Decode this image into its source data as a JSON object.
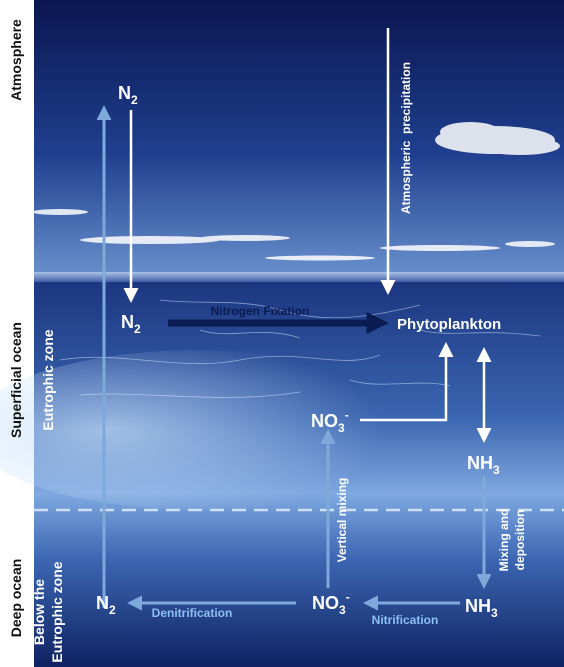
{
  "zones": {
    "atmosphere": "Atmosphere",
    "superficial_ocean": "Superficial ocean",
    "eutrophic_zone": "Eutrophic zone",
    "deep_ocean": "Deep ocean",
    "below_eutrophic_line1": "Below the",
    "below_eutrophic_line2": "Eutrophic zone"
  },
  "nodes": {
    "n2_atmosphere": {
      "base": "N",
      "sub": "2"
    },
    "n2_surface": {
      "base": "N",
      "sub": "2"
    },
    "phytoplankton": "Phytoplankton",
    "no3_surface": {
      "base": "NO",
      "sub": "3",
      "sup": "-"
    },
    "nh3_surface": {
      "base": "NH",
      "sub": "3"
    },
    "n2_deep": {
      "base": "N",
      "sub": "2"
    },
    "no3_deep": {
      "base": "NO",
      "sub": "3",
      "sup": "-"
    },
    "nh3_deep": {
      "base": "NH",
      "sub": "3"
    }
  },
  "processes": {
    "atmospheric_precipitation": "Atmospheric  precipitation",
    "nitrogen_fixation": "Nitrogen Fixation",
    "vertical_mixing": "Vertical mixing",
    "mixing_deposition_line1": "Mixing and",
    "mixing_deposition_line2": "deposition",
    "denitrification": "Denitrification",
    "nitrification": "Nitrification"
  },
  "colors": {
    "sky_top": "#0c1a55",
    "sky_bottom": "#5d87c6",
    "ocean_surface": "#243f86",
    "ocean_glow": "#8fb8e6",
    "deep_ocean": "#0e2060",
    "arrow_white": "#ffffff",
    "arrow_light_blue": "#7ea9da",
    "arrow_dark_navy": "#0b1c52",
    "process_text_blue": "#8cc0f0"
  }
}
